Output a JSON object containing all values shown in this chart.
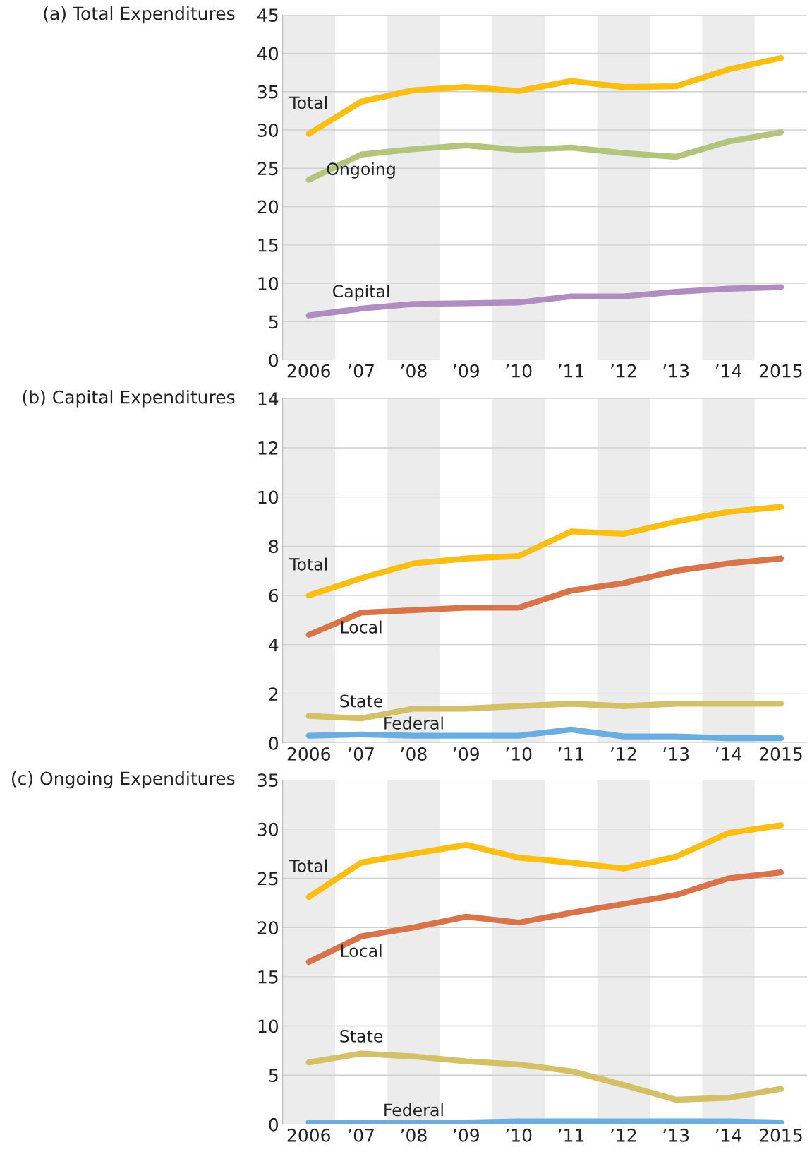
{
  "chart_data": [
    {
      "type": "line",
      "title": "(a) Total Expenditures",
      "x": [
        2006,
        2007,
        2008,
        2009,
        2010,
        2011,
        2012,
        2013,
        2014,
        2015
      ],
      "xlim": [
        2005.5,
        2015.5
      ],
      "xticks": [
        {
          "value": 2006,
          "label": "2006"
        },
        {
          "value": 2007,
          "label": "’07"
        },
        {
          "value": 2008,
          "label": "’08"
        },
        {
          "value": 2009,
          "label": "’09"
        },
        {
          "value": 2010,
          "label": "’10"
        },
        {
          "value": 2011,
          "label": "’11"
        },
        {
          "value": 2012,
          "label": "’12"
        },
        {
          "value": 2013,
          "label": "’13"
        },
        {
          "value": 2014,
          "label": "’14"
        },
        {
          "value": 2015,
          "label": "2015"
        }
      ],
      "ylim": [
        0,
        45
      ],
      "yticks": [
        0,
        5,
        10,
        15,
        20,
        25,
        30,
        35,
        40,
        45
      ],
      "grid": "y",
      "bands": [
        {
          "axis": "x",
          "from": 2005.5,
          "to": 2006.5,
          "color": "#ececec"
        },
        {
          "axis": "x",
          "from": 2007.5,
          "to": 2008.5,
          "color": "#ececec"
        },
        {
          "axis": "x",
          "from": 2009.5,
          "to": 2010.5,
          "color": "#ececec"
        },
        {
          "axis": "x",
          "from": 2011.5,
          "to": 2012.5,
          "color": "#ececec"
        },
        {
          "axis": "x",
          "from": 2013.5,
          "to": 2014.5,
          "color": "#ececec"
        }
      ],
      "series": [
        {
          "name": "Total",
          "color": "#fbbf14",
          "values": [
            29.5,
            33.7,
            35.2,
            35.6,
            35.1,
            36.4,
            35.6,
            35.7,
            37.9,
            39.4
          ]
        },
        {
          "name": "Ongoing",
          "color": "#b5c47c",
          "values": [
            23.5,
            26.8,
            27.5,
            28.0,
            27.4,
            27.7,
            27.0,
            26.5,
            28.5,
            29.7
          ]
        },
        {
          "name": "Capital",
          "color": "#b08cc0",
          "values": [
            5.8,
            6.7,
            7.3,
            7.4,
            7.5,
            8.3,
            8.3,
            8.9,
            9.3,
            9.5
          ]
        }
      ]
    },
    {
      "type": "line",
      "title": "(b) Capital Expenditures",
      "x": [
        2006,
        2007,
        2008,
        2009,
        2010,
        2011,
        2012,
        2013,
        2014,
        2015
      ],
      "xlim": [
        2005.5,
        2015.5
      ],
      "xticks": [
        {
          "value": 2006,
          "label": "2006"
        },
        {
          "value": 2007,
          "label": "’07"
        },
        {
          "value": 2008,
          "label": "’08"
        },
        {
          "value": 2009,
          "label": "’09"
        },
        {
          "value": 2010,
          "label": "’10"
        },
        {
          "value": 2011,
          "label": "’11"
        },
        {
          "value": 2012,
          "label": "’12"
        },
        {
          "value": 2013,
          "label": "’13"
        },
        {
          "value": 2014,
          "label": "’14"
        },
        {
          "value": 2015,
          "label": "2015"
        }
      ],
      "ylim": [
        0,
        14
      ],
      "yticks": [
        0,
        2,
        4,
        6,
        8,
        10,
        12,
        14
      ],
      "grid": "y",
      "bands": [
        {
          "axis": "x",
          "from": 2005.5,
          "to": 2006.5,
          "color": "#ececec"
        },
        {
          "axis": "x",
          "from": 2007.5,
          "to": 2008.5,
          "color": "#ececec"
        },
        {
          "axis": "x",
          "from": 2009.5,
          "to": 2010.5,
          "color": "#ececec"
        },
        {
          "axis": "x",
          "from": 2011.5,
          "to": 2012.5,
          "color": "#ececec"
        },
        {
          "axis": "x",
          "from": 2013.5,
          "to": 2014.5,
          "color": "#ececec"
        }
      ],
      "series": [
        {
          "name": "Total",
          "color": "#fbbf14",
          "values": [
            6.0,
            6.7,
            7.3,
            7.5,
            7.6,
            8.6,
            8.5,
            9.0,
            9.4,
            9.6
          ]
        },
        {
          "name": "Local",
          "color": "#d9744a",
          "values": [
            4.4,
            5.3,
            5.4,
            5.5,
            5.5,
            6.2,
            6.5,
            7.0,
            7.3,
            7.5
          ]
        },
        {
          "name": "State",
          "color": "#d4c067",
          "values": [
            1.1,
            1.0,
            1.4,
            1.4,
            1.5,
            1.6,
            1.5,
            1.6,
            1.6,
            1.6
          ]
        },
        {
          "name": "Federal",
          "color": "#6aaee0",
          "values": [
            0.3,
            0.35,
            0.3,
            0.3,
            0.3,
            0.55,
            0.27,
            0.27,
            0.2,
            0.2
          ]
        }
      ]
    },
    {
      "type": "line",
      "title": "(c) Ongoing Expenditures",
      "x": [
        2006,
        2007,
        2008,
        2009,
        2010,
        2011,
        2012,
        2013,
        2014,
        2015
      ],
      "xlim": [
        2005.5,
        2015.5
      ],
      "xticks": [
        {
          "value": 2006,
          "label": "2006"
        },
        {
          "value": 2007,
          "label": "’07"
        },
        {
          "value": 2008,
          "label": "’08"
        },
        {
          "value": 2009,
          "label": "’09"
        },
        {
          "value": 2010,
          "label": "’10"
        },
        {
          "value": 2011,
          "label": "’11"
        },
        {
          "value": 2012,
          "label": "’12"
        },
        {
          "value": 2013,
          "label": "’13"
        },
        {
          "value": 2014,
          "label": "’14"
        },
        {
          "value": 2015,
          "label": "2015"
        }
      ],
      "ylim": [
        0,
        35
      ],
      "yticks": [
        0,
        5,
        10,
        15,
        20,
        25,
        30,
        35
      ],
      "grid": "y",
      "bands": [
        {
          "axis": "x",
          "from": 2005.5,
          "to": 2006.5,
          "color": "#ececec"
        },
        {
          "axis": "x",
          "from": 2007.5,
          "to": 2008.5,
          "color": "#ececec"
        },
        {
          "axis": "x",
          "from": 2009.5,
          "to": 2010.5,
          "color": "#ececec"
        },
        {
          "axis": "x",
          "from": 2011.5,
          "to": 2012.5,
          "color": "#ececec"
        },
        {
          "axis": "x",
          "from": 2013.5,
          "to": 2014.5,
          "color": "#ececec"
        }
      ],
      "series": [
        {
          "name": "Total",
          "color": "#fbbf14",
          "values": [
            23.1,
            26.6,
            27.5,
            28.4,
            27.1,
            26.6,
            26.0,
            27.2,
            29.6,
            30.4
          ]
        },
        {
          "name": "Local",
          "color": "#d9744a",
          "values": [
            16.5,
            19.1,
            20.0,
            21.1,
            20.5,
            21.5,
            22.4,
            23.3,
            25.0,
            25.6
          ]
        },
        {
          "name": "State",
          "color": "#d4c067",
          "values": [
            6.3,
            7.2,
            6.9,
            6.4,
            6.1,
            5.4,
            4.0,
            2.5,
            2.7,
            3.6
          ]
        },
        {
          "name": "Federal",
          "color": "#6aaee0",
          "values": [
            0.2,
            0.2,
            0.2,
            0.2,
            0.3,
            0.3,
            0.3,
            0.3,
            0.3,
            0.2
          ]
        }
      ]
    }
  ]
}
